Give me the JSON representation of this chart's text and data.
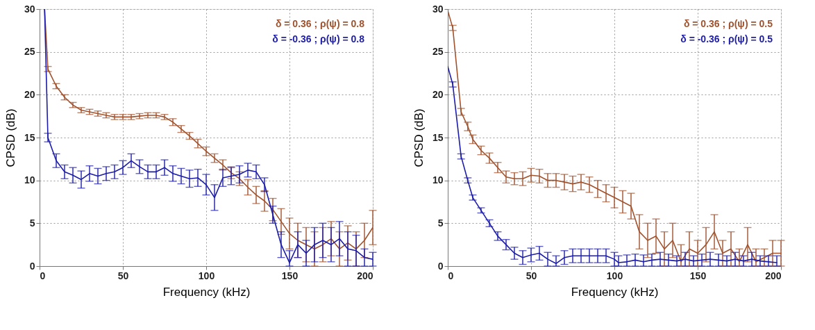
{
  "chart_data": [
    {
      "type": "line",
      "xlabel": "Frequency (kHz)",
      "ylabel": "CPSD (dB)",
      "xlim": [
        0,
        200
      ],
      "ylim": [
        0,
        30
      ],
      "xticks": [
        0,
        50,
        100,
        150,
        200
      ],
      "yticks": [
        0,
        5,
        10,
        15,
        20,
        25,
        30
      ],
      "grid": true,
      "legend": "top right",
      "marker": "none",
      "line_style": "solid",
      "series": [
        {
          "name": "δ = 0.36 ; ρ(ψ) = 0.8",
          "color": "#a0522d",
          "x": [
            3,
            5,
            10,
            15,
            20,
            25,
            30,
            35,
            40,
            45,
            50,
            55,
            60,
            65,
            70,
            75,
            80,
            85,
            90,
            95,
            100,
            105,
            110,
            115,
            120,
            125,
            130,
            135,
            140,
            145,
            150,
            155,
            160,
            165,
            170,
            175,
            180,
            185,
            190,
            195,
            200
          ],
          "values": [
            30,
            23,
            21,
            19.7,
            18.8,
            18.2,
            18,
            17.8,
            17.6,
            17.4,
            17.4,
            17.4,
            17.5,
            17.6,
            17.6,
            17.4,
            16.8,
            16,
            15.2,
            14.3,
            13.4,
            12.6,
            11.8,
            10.9,
            10.2,
            9.2,
            8.3,
            7.6,
            6.6,
            5.2,
            3.8,
            3,
            2.5,
            2,
            2.5,
            3.2,
            2,
            2.7,
            2,
            3,
            4.5
          ],
          "errors": [
            null,
            0.3,
            0.3,
            0.3,
            0.3,
            0.3,
            0.3,
            0.3,
            0.3,
            0.3,
            0.3,
            0.3,
            0.3,
            0.3,
            0.3,
            0.3,
            0.4,
            0.4,
            0.4,
            0.5,
            0.5,
            0.5,
            0.6,
            0.7,
            0.8,
            0.9,
            1,
            1.2,
            1.3,
            1.5,
            1.8,
            2,
            2,
            2,
            2,
            2,
            2,
            2,
            2,
            2,
            2
          ]
        },
        {
          "name": "δ = -0.36 ; ρ(ψ) = 0.8",
          "color": "#1c1ca8",
          "x": [
            3,
            5,
            10,
            15,
            20,
            25,
            30,
            35,
            40,
            45,
            50,
            55,
            60,
            65,
            70,
            75,
            80,
            85,
            90,
            95,
            100,
            105,
            110,
            115,
            120,
            125,
            130,
            135,
            140,
            145,
            150,
            155,
            160,
            165,
            170,
            175,
            180,
            185,
            190,
            195,
            200
          ],
          "values": [
            30,
            15,
            12.3,
            11,
            10.6,
            10.1,
            10.8,
            10.5,
            10.8,
            11,
            11.5,
            12.3,
            11.6,
            11,
            11,
            11.5,
            10.8,
            10.5,
            10.2,
            10.3,
            9.5,
            8,
            10.3,
            10.5,
            10.7,
            11.2,
            11,
            9.5,
            6,
            2.5,
            0.4,
            2.5,
            1.5,
            2.5,
            3,
            2.5,
            3.2,
            2,
            1.8,
            1,
            0.8
          ],
          "errors": [
            null,
            0.5,
            0.8,
            0.8,
            0.9,
            1,
            0.9,
            0.9,
            0.8,
            0.8,
            0.8,
            0.8,
            0.8,
            0.8,
            0.8,
            0.9,
            0.9,
            0.9,
            1,
            1,
            1.2,
            1.5,
            1,
            1,
            1,
            0.8,
            0.8,
            0.8,
            1,
            1.5,
            [
              0,
              1.8
            ],
            1.5,
            1.5,
            2,
            2,
            2,
            2,
            2,
            1.8,
            1,
            0.8
          ]
        }
      ]
    },
    {
      "type": "line",
      "xlabel": "Frequency (kHz)",
      "ylabel": "CPSD (dB)",
      "xlim": [
        0,
        200
      ],
      "ylim": [
        0,
        30
      ],
      "xticks": [
        0,
        50,
        100,
        150,
        200
      ],
      "yticks": [
        0,
        5,
        10,
        15,
        20,
        25,
        30
      ],
      "grid": true,
      "legend": "top right",
      "marker": "none",
      "line_style": "solid",
      "series": [
        {
          "name": "δ = 0.36 ; ρ(ψ) = 0.5",
          "color": "#a0522d",
          "x": [
            0,
            3,
            8,
            12,
            15,
            20,
            25,
            30,
            35,
            40,
            45,
            50,
            55,
            60,
            65,
            70,
            75,
            80,
            85,
            90,
            95,
            100,
            105,
            110,
            115,
            120,
            125,
            130,
            135,
            140,
            145,
            150,
            155,
            160,
            165,
            170,
            175,
            180,
            185,
            190,
            195,
            200
          ],
          "values": [
            29.8,
            27.8,
            18,
            16.3,
            14.8,
            13.5,
            12.6,
            11.5,
            10.4,
            10.2,
            10.2,
            10.6,
            10.5,
            10,
            10,
            9.8,
            9.6,
            9.8,
            9.5,
            9,
            8.5,
            8,
            7.5,
            7,
            4,
            3,
            3.5,
            2,
            3,
            0.5,
            2,
            1.5,
            2.5,
            4,
            1.5,
            2,
            0.5,
            2.5,
            0.5,
            1,
            1.5,
            1.5
          ],
          "errors": [
            null,
            0.3,
            0.4,
            0.5,
            0.5,
            0.5,
            0.6,
            0.6,
            0.7,
            0.7,
            0.8,
            0.8,
            0.8,
            0.8,
            0.8,
            0.9,
            0.9,
            0.9,
            0.9,
            1,
            1,
            1.2,
            1.3,
            1.5,
            2,
            2,
            2,
            2,
            2,
            [
              0,
              2.5
            ],
            2,
            1.5,
            2,
            2,
            1.5,
            2,
            [
              0,
              2
            ],
            2,
            [
              0,
              2
            ],
            1,
            1.5,
            1.5
          ]
        },
        {
          "name": "δ = -0.36 ; ρ(ψ) = 0.5",
          "color": "#1c1ca8",
          "x": [
            0,
            3,
            8,
            12,
            15,
            20,
            25,
            30,
            35,
            40,
            45,
            50,
            55,
            60,
            65,
            70,
            75,
            80,
            85,
            90,
            95,
            100,
            102.5,
            107.5,
            112.5,
            117.5,
            122.5,
            127.5,
            132.5,
            137.5,
            142.5,
            147.5,
            152.5,
            157.5,
            162.5,
            167.5,
            172.5,
            177.5,
            182.5,
            187.5,
            192.5,
            197.5
          ],
          "values": [
            23.3,
            21.2,
            12.8,
            10,
            8,
            6.5,
            5,
            3.5,
            2.5,
            1.5,
            1,
            1.3,
            1.5,
            0.8,
            0.3,
            1,
            1.2,
            1.2,
            1.2,
            1.2,
            1.2,
            0.8,
            0.4,
            0.5,
            0.7,
            0.5,
            0.7,
            0.8,
            0.7,
            0.6,
            0.8,
            0.6,
            0.7,
            0.8,
            0.7,
            0.6,
            0.8,
            0.6,
            0.8,
            0.6,
            0.5,
            0.4
          ],
          "errors": [
            null,
            0.3,
            0.3,
            0.3,
            0.3,
            0.3,
            0.4,
            0.5,
            0.6,
            0.7,
            0.8,
            0.8,
            0.8,
            0.8,
            [
              0,
              1.2
            ],
            0.8,
            0.8,
            0.8,
            0.8,
            0.8,
            0.8,
            0.8,
            [
              0,
              1.2
            ],
            [
              0,
              1.3
            ],
            0.7,
            [
              0,
              1.3
            ],
            0.7,
            0.8,
            0.7,
            0.6,
            0.8,
            0.6,
            0.7,
            0.8,
            0.7,
            0.6,
            0.8,
            0.6,
            0.8,
            0.6,
            [
              0,
              1.2
            ],
            [
              0,
              1.2
            ]
          ]
        }
      ]
    }
  ]
}
